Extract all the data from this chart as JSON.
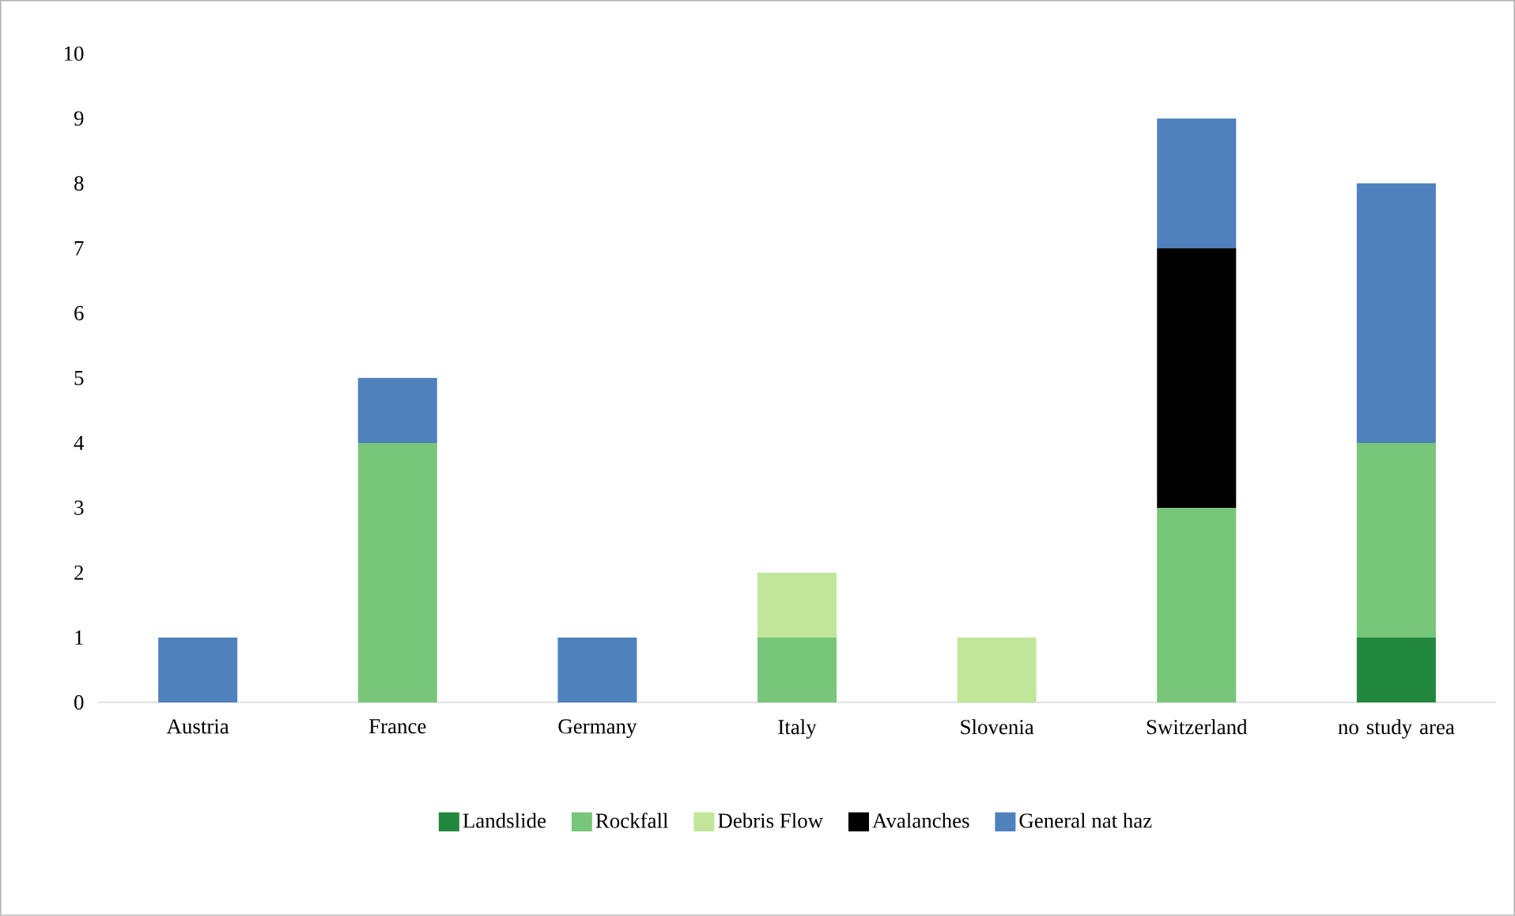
{
  "chart_data": {
    "type": "bar",
    "stacked": true,
    "categories": [
      "Austria",
      "France",
      "Germany",
      "Italy",
      "Slovenia",
      "Switzerland",
      "no study area"
    ],
    "series": [
      {
        "name": "Landslide",
        "color": "#23883f",
        "values": [
          0,
          0,
          0,
          0,
          0,
          0,
          1
        ]
      },
      {
        "name": "Rockfall",
        "color": "#78c679",
        "values": [
          0,
          4,
          0,
          1,
          0,
          3,
          3
        ]
      },
      {
        "name": "Debris Flow",
        "color": "#c2e699",
        "values": [
          0,
          0,
          0,
          1,
          1,
          0,
          0
        ]
      },
      {
        "name": "Avalanches",
        "color": "#000000",
        "values": [
          0,
          0,
          0,
          0,
          0,
          4,
          0
        ]
      },
      {
        "name": "General nat haz",
        "color": "#4f81bd",
        "values": [
          1,
          1,
          1,
          0,
          0,
          2,
          4
        ]
      }
    ],
    "ylim": [
      0,
      10
    ],
    "yticks": [
      0,
      1,
      2,
      3,
      4,
      5,
      6,
      7,
      8,
      9,
      10
    ],
    "grid": false,
    "legend": "bottom"
  }
}
